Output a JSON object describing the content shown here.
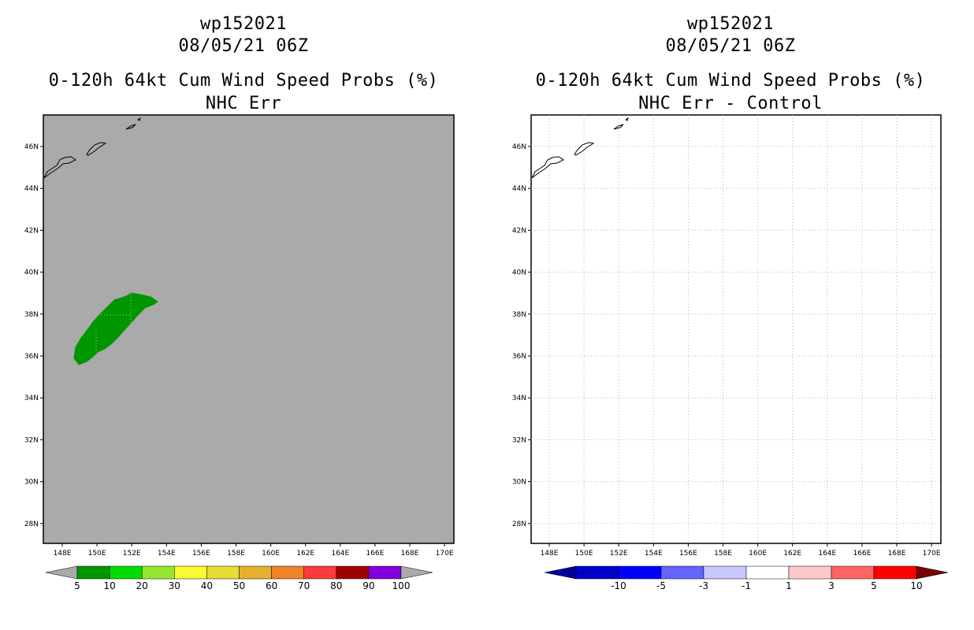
{
  "left": {
    "title_line1": "wp152021",
    "title_line2": "08/05/21 06Z",
    "title_line3": "0-120h 64kt Cum Wind Speed Probs (%)",
    "title_line4": "NHC Err",
    "background_color": "#aaaaaa",
    "colorbar": {
      "colors": [
        "#009600",
        "#00dc00",
        "#96e632",
        "#fafa32",
        "#e6dc32",
        "#e6af2d",
        "#f08228",
        "#fa3c3c",
        "#a00000",
        "#8200dc"
      ],
      "labels": [
        "5",
        "10",
        "20",
        "30",
        "40",
        "50",
        "60",
        "70",
        "80",
        "90",
        "100"
      ]
    },
    "contour": {
      "color": "#009600",
      "label": "wind-probability-area-5-10pct"
    }
  },
  "right": {
    "title_line1": "wp152021",
    "title_line2": "08/05/21 06Z",
    "title_line3": "0-120h 64kt Cum Wind Speed Probs (%)",
    "title_line4": "NHC Err - Control",
    "background_color": "#ffffff",
    "colorbar": {
      "colors": [
        "#0000c8",
        "#0000ff",
        "#6464ff",
        "#c8c8ff",
        "#ffffff",
        "#ffc8c8",
        "#ff6464",
        "#ff0000"
      ],
      "labels": [
        "-10",
        "-5",
        "-3",
        "-1",
        "1",
        "3",
        "5",
        "10"
      ]
    }
  },
  "axes": {
    "lat_labels": [
      "46N",
      "44N",
      "42N",
      "40N",
      "38N",
      "36N",
      "34N",
      "32N",
      "30N",
      "28N"
    ],
    "lon_labels": [
      "148E",
      "150E",
      "152E",
      "154E",
      "156E",
      "158E",
      "160E",
      "162E",
      "164E",
      "166E",
      "168E",
      "170E"
    ]
  }
}
